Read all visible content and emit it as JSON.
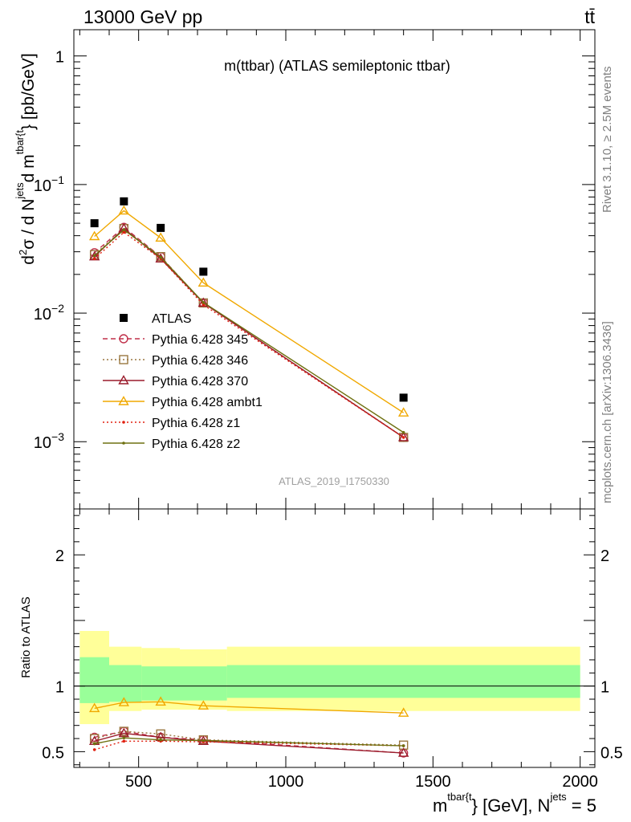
{
  "header": {
    "left": "13000 GeV pp",
    "right": "tt̄"
  },
  "side_labels": {
    "rivet": "Rivet 3.1.10, ≥ 2.5M events",
    "mcplots": "mcplots.cern.ch [arXiv:1306.3436]"
  },
  "chart_data": [
    {
      "panel": "main",
      "type": "scatter",
      "title": "m(ttbar) (ATLAS semileptonic ttbar)",
      "watermark": "ATLAS_2019_I1750330",
      "ylabel": {
        "p1": "d",
        "p2": "2",
        "p3": "σ / d N",
        "p4": "jets",
        "p5": "d m",
        "p6": "tbar{t",
        "p7": "} [pb/GeV]"
      },
      "yscale": "log",
      "ylim": [
        0.0003,
        1.6
      ],
      "xlim": [
        280,
        2050
      ],
      "ytick_labels": [
        {
          "value": 1,
          "base": "1",
          "exp": ""
        },
        {
          "value": 0.1,
          "base": "10",
          "exp": "−1"
        },
        {
          "value": 0.01,
          "base": "10",
          "exp": "−2"
        },
        {
          "value": 0.001,
          "base": "10",
          "exp": "−3"
        }
      ],
      "x": [
        350,
        450,
        575,
        720,
        1400
      ],
      "legend_placement": "middle-left",
      "series": [
        {
          "name": "ATLAS",
          "color": "#000000",
          "marker": "square-filled",
          "line": "none",
          "values": [
            0.05,
            0.074,
            0.046,
            0.021,
            0.0022
          ]
        },
        {
          "name": "Pythia 6.428 345",
          "color": "#c0304a",
          "marker": "circle-open",
          "line": "dashed",
          "values": [
            0.0295,
            0.0465,
            0.0275,
            0.012,
            0.00108
          ]
        },
        {
          "name": "Pythia 6.428 346",
          "color": "#9a7740",
          "marker": "square-open",
          "line": "dotted",
          "values": [
            0.0285,
            0.0455,
            0.0275,
            0.012,
            0.00108
          ]
        },
        {
          "name": "Pythia 6.428 370",
          "color": "#9a1c2c",
          "marker": "triangle-open",
          "line": "solid",
          "values": [
            0.0275,
            0.0455,
            0.0265,
            0.012,
            0.00108
          ]
        },
        {
          "name": "Pythia 6.428 ambt1",
          "color": "#f0a800",
          "marker": "triangle-open",
          "line": "solid",
          "values": [
            0.0395,
            0.0625,
            0.0385,
            0.0172,
            0.00168
          ]
        },
        {
          "name": "Pythia 6.428 z1",
          "color": "#e02010",
          "marker": "dot",
          "line": "dotted",
          "values": [
            0.0265,
            0.0425,
            0.0265,
            0.0116,
            0.00108
          ]
        },
        {
          "name": "Pythia 6.428 z2",
          "color": "#6e7010",
          "marker": "dot",
          "line": "solid",
          "values": [
            0.028,
            0.0445,
            0.0272,
            0.0121,
            0.00118
          ]
        }
      ]
    },
    {
      "panel": "ratio",
      "type": "line",
      "ylabel": "Ratio to ATLAS",
      "xlabel": {
        "m": "m",
        "sup1": "tbar{t",
        "mid": "} [GeV], N",
        "sup2": "jets",
        "end": " = 5"
      },
      "xlim": [
        280,
        2050
      ],
      "ylim": [
        0.38,
        2.35
      ],
      "xtick_labels": [
        500,
        1000,
        1500,
        2000
      ],
      "ytick_labels": [
        0.5,
        1,
        2
      ],
      "bands": {
        "edges": [
          300,
          400,
          510,
          640,
          800,
          2000
        ],
        "yellow": [
          [
            0.71,
            1.42
          ],
          [
            0.81,
            1.3
          ],
          [
            0.82,
            1.29
          ],
          [
            0.82,
            1.28
          ],
          [
            0.81,
            1.3
          ]
        ],
        "green": [
          [
            0.87,
            1.22
          ],
          [
            0.88,
            1.16
          ],
          [
            0.89,
            1.15
          ],
          [
            0.89,
            1.15
          ],
          [
            0.91,
            1.16
          ]
        ],
        "yellow_color": "#ffff99",
        "green_color": "#99ff99"
      },
      "x": [
        350,
        450,
        575,
        720,
        1400
      ],
      "series": [
        {
          "name": "Pythia 6.428 345",
          "color": "#c0304a",
          "marker": "circle-open",
          "line": "dashed",
          "values": [
            0.61,
            0.655,
            0.61,
            0.59,
            0.49
          ]
        },
        {
          "name": "Pythia 6.428 346",
          "color": "#9a7740",
          "marker": "square-open",
          "line": "dotted",
          "values": [
            0.6,
            0.655,
            0.635,
            0.59,
            0.55
          ]
        },
        {
          "name": "Pythia 6.428 370",
          "color": "#9a1c2c",
          "marker": "triangle-open",
          "line": "solid",
          "values": [
            0.58,
            0.64,
            0.61,
            0.58,
            0.49
          ]
        },
        {
          "name": "Pythia 6.428 ambt1",
          "color": "#f0a800",
          "marker": "triangle-open",
          "line": "solid",
          "values": [
            0.83,
            0.875,
            0.88,
            0.85,
            0.795
          ]
        },
        {
          "name": "Pythia 6.428 z1",
          "color": "#e02010",
          "marker": "dot",
          "line": "dotted",
          "values": [
            0.515,
            0.58,
            0.58,
            0.575,
            0.545
          ]
        },
        {
          "name": "Pythia 6.428 z2",
          "color": "#6e7010",
          "marker": "dot",
          "line": "solid",
          "values": [
            0.56,
            0.605,
            0.59,
            0.585,
            0.545
          ]
        }
      ]
    }
  ]
}
